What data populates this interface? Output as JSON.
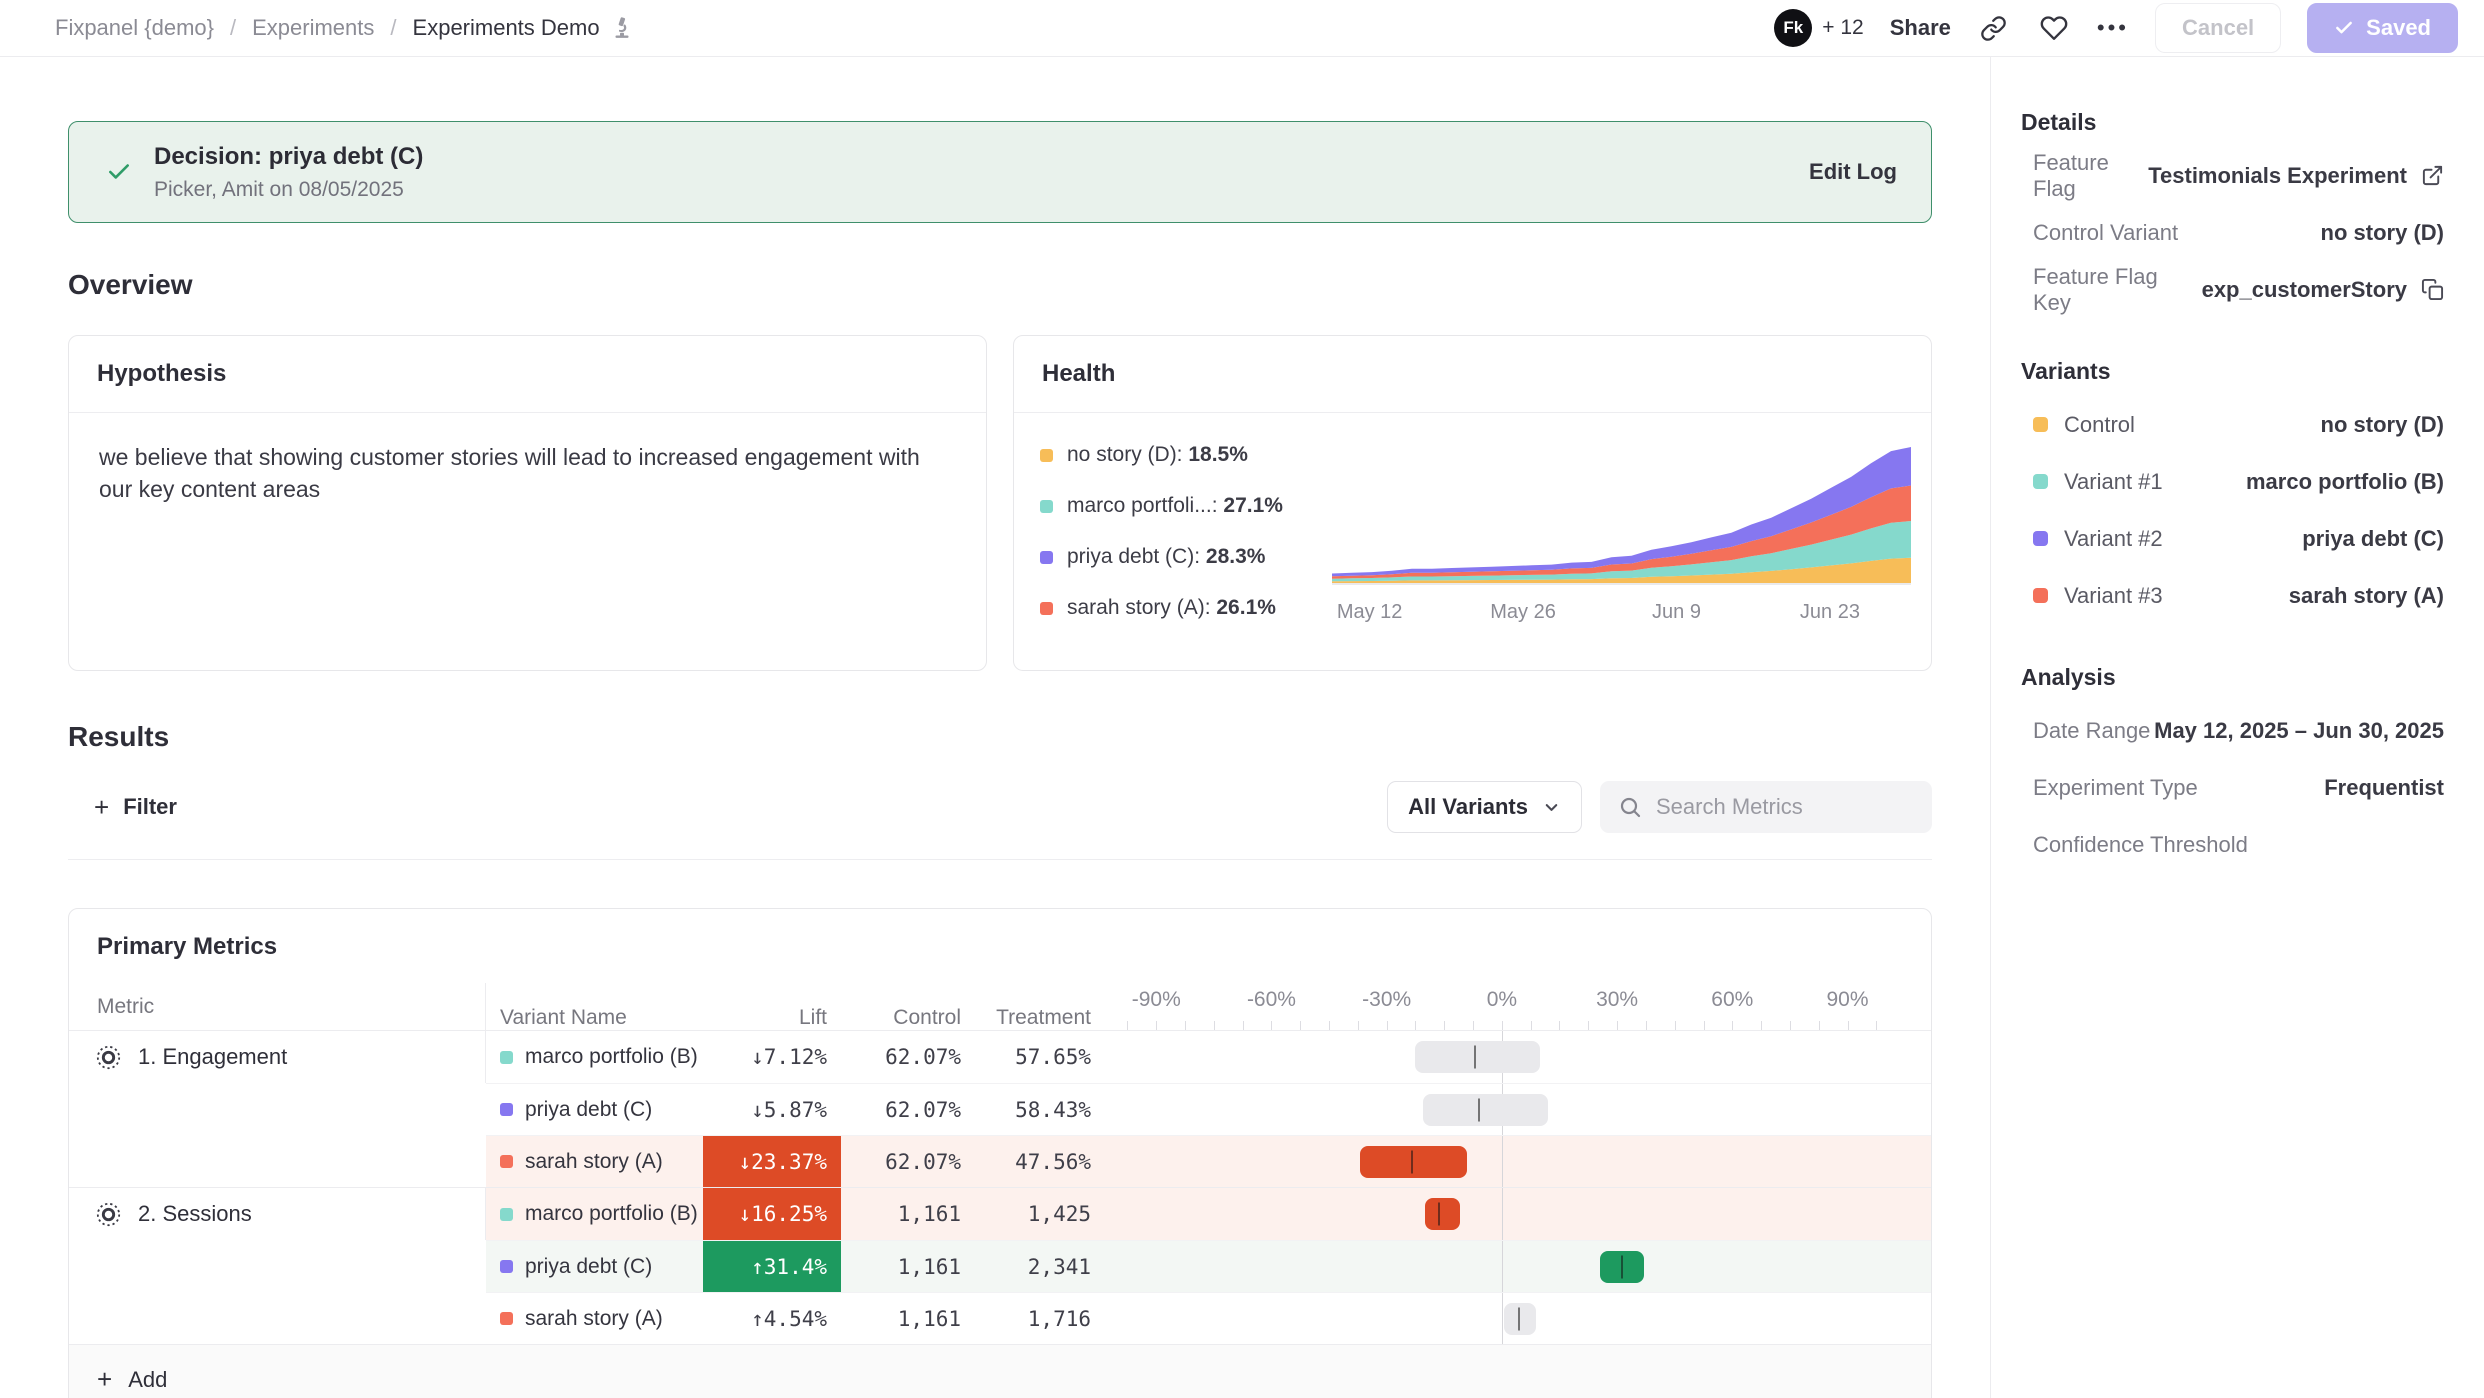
{
  "header": {
    "breadcrumb": [
      "Fixpanel {demo}",
      "Experiments",
      "Experiments Demo"
    ],
    "separator": "/",
    "avatar_initials": "Fk",
    "avatar_more": "+ 12",
    "share": "Share",
    "more_dots": "•••",
    "cancel": "Cancel",
    "saved": "Saved"
  },
  "decision": {
    "title": "Decision: priya debt (C)",
    "meta": "Picker, Amit on 08/05/2025",
    "edit_log": "Edit Log"
  },
  "overview": {
    "heading": "Overview",
    "hypothesis": {
      "title": "Hypothesis",
      "body": "we believe that showing customer stories will lead to increased engagement with our key content areas"
    },
    "health": {
      "title": "Health",
      "legend": [
        {
          "label": "no story (D)",
          "value": "18.5%",
          "color": "#f7bd58"
        },
        {
          "label": "marco portfoli...",
          "value": "27.1%",
          "color": "#85d9cc"
        },
        {
          "label": "priya debt (C)",
          "value": "28.3%",
          "color": "#8677f0"
        },
        {
          "label": "sarah story (A)",
          "value": "26.1%",
          "color": "#f4705a"
        }
      ],
      "chart_data": {
        "type": "area",
        "stacked": true,
        "x_ticks": [
          {
            "label": "May 12",
            "pos": 6.5
          },
          {
            "label": "May 26",
            "pos": 33
          },
          {
            "label": "Jun 9",
            "pos": 59.5
          },
          {
            "label": "Jun 23",
            "pos": 86
          }
        ],
        "totals": [
          0.07,
          0.075,
          0.08,
          0.09,
          0.105,
          0.105,
          0.11,
          0.115,
          0.12,
          0.125,
          0.13,
          0.135,
          0.15,
          0.155,
          0.19,
          0.2,
          0.245,
          0.27,
          0.3,
          0.335,
          0.37,
          0.43,
          0.48,
          0.55,
          0.62,
          0.7,
          0.78,
          0.88,
          0.97,
          1.0
        ],
        "series": [
          {
            "name": "no story (D)",
            "color": "#f7bd58",
            "share": 0.185
          },
          {
            "name": "marco portfolio (B)",
            "color": "#85d9cc",
            "share": 0.271
          },
          {
            "name": "sarah story (A)",
            "color": "#f4705a",
            "share": 0.261
          },
          {
            "name": "priya debt (C)",
            "color": "#8677f0",
            "share": 0.283
          }
        ]
      }
    }
  },
  "results": {
    "heading": "Results",
    "filter_label": "Filter",
    "variants_dropdown": "All Variants",
    "search_placeholder": "Search Metrics"
  },
  "metrics": {
    "title": "Primary Metrics",
    "columns": [
      "Metric",
      "Variant Name",
      "Lift",
      "Control",
      "Treatment"
    ],
    "axis": [
      {
        "label": "-90%",
        "v": -90
      },
      {
        "label": "-60%",
        "v": -60
      },
      {
        "label": "-30%",
        "v": -30
      },
      {
        "label": "0%",
        "v": 0
      },
      {
        "label": "30%",
        "v": 30
      },
      {
        "label": "60%",
        "v": 60
      },
      {
        "label": "90%",
        "v": 90
      }
    ],
    "groups": [
      {
        "name": "1. Engagement",
        "rows": [
          {
            "variant": "marco portfolio (B)",
            "color": "#85d9cc",
            "lift": "↓7.12%",
            "control": "62.07%",
            "treatment": "57.65%",
            "highlight": "none",
            "tint": "none",
            "ci_low": -22.5,
            "ci_high": 10,
            "ci_mid": -7.12
          },
          {
            "variant": "priya debt (C)",
            "color": "#8677f0",
            "lift": "↓5.87%",
            "control": "62.07%",
            "treatment": "58.43%",
            "highlight": "none",
            "tint": "none",
            "ci_low": -20.5,
            "ci_high": 12,
            "ci_mid": -5.87
          },
          {
            "variant": "sarah story (A)",
            "color": "#f4705a",
            "lift": "↓23.37%",
            "control": "62.07%",
            "treatment": "47.56%",
            "highlight": "red",
            "tint": "pink",
            "ci_low": -37,
            "ci_high": -9,
            "ci_mid": -23.37
          }
        ]
      },
      {
        "name": "2. Sessions",
        "rows": [
          {
            "variant": "marco portfolio (B)",
            "color": "#85d9cc",
            "lift": "↓16.25%",
            "control": "1,161",
            "treatment": "1,425",
            "highlight": "red",
            "tint": "pink",
            "ci_low": -20,
            "ci_high": -11,
            "ci_mid": -16.25
          },
          {
            "variant": "priya debt (C)",
            "color": "#8677f0",
            "lift": "↑31.4%",
            "control": "1,161",
            "treatment": "2,341",
            "highlight": "green",
            "tint": "green",
            "ci_low": 25.5,
            "ci_high": 37,
            "ci_mid": 31.4
          },
          {
            "variant": "sarah story (A)",
            "color": "#f4705a",
            "lift": "↑4.54%",
            "control": "1,161",
            "treatment": "1,716",
            "highlight": "none",
            "tint": "none",
            "ci_low": 0.5,
            "ci_high": 9,
            "ci_mid": 4.54
          }
        ]
      }
    ],
    "add_label": "Add"
  },
  "sidebar": {
    "details": {
      "title": "Details",
      "rows": [
        {
          "label": "Feature Flag",
          "value": "Testimonials Experiment",
          "icon": "external-link-icon"
        },
        {
          "label": "Control Variant",
          "value": "no story (D)",
          "icon": ""
        },
        {
          "label": "Feature Flag Key",
          "value": "exp_customerStory",
          "icon": "copy-icon"
        }
      ]
    },
    "variants": {
      "title": "Variants",
      "rows": [
        {
          "label": "Control",
          "value": "no story (D)",
          "color": "#f7bd58"
        },
        {
          "label": "Variant #1",
          "value": "marco portfolio (B)",
          "color": "#85d9cc"
        },
        {
          "label": "Variant #2",
          "value": "priya debt (C)",
          "color": "#8677f0"
        },
        {
          "label": "Variant #3",
          "value": "sarah story (A)",
          "color": "#f4705a"
        }
      ]
    },
    "analysis": {
      "title": "Analysis",
      "rows": [
        {
          "label": "Date Range",
          "value": "May 12, 2025 – Jun 30, 2025"
        },
        {
          "label": "Experiment Type",
          "value": "Frequentist"
        },
        {
          "label": "Confidence Threshold",
          "value": ""
        }
      ]
    }
  }
}
